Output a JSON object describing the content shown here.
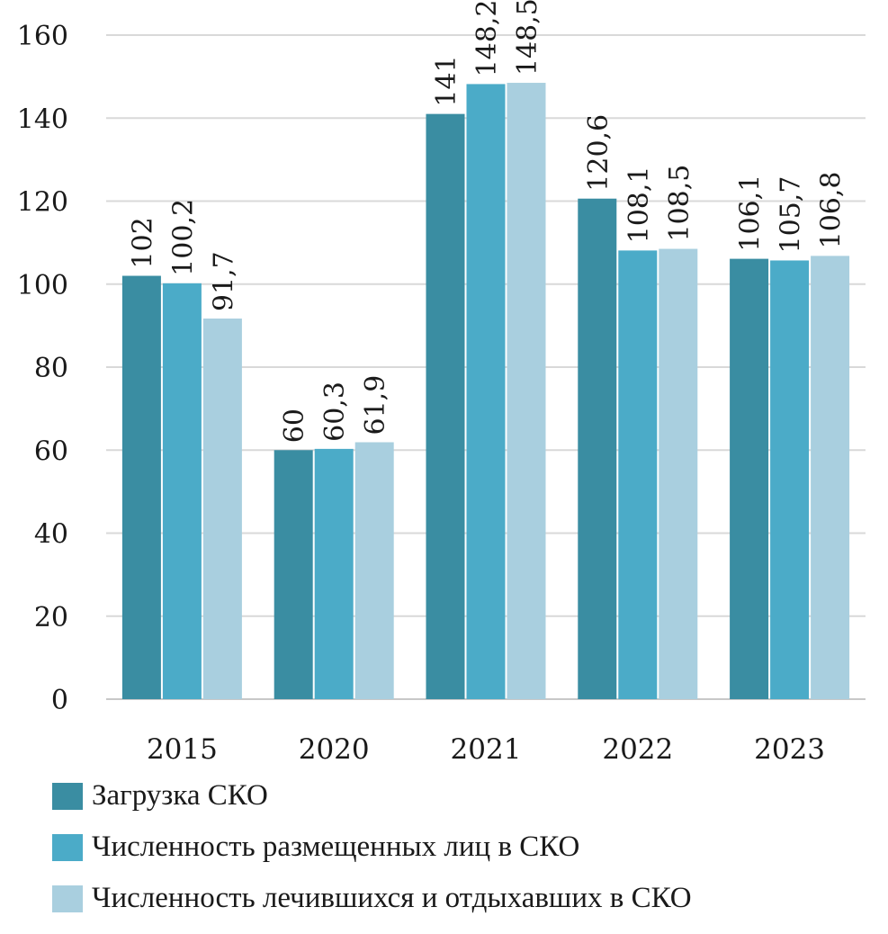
{
  "chart_data": {
    "type": "bar",
    "title": "",
    "xlabel": "",
    "ylabel": "",
    "categories": [
      "2015",
      "2020",
      "2021",
      "2022",
      "2023"
    ],
    "ylim": [
      0,
      160
    ],
    "yticks": [
      "0",
      "20",
      "40",
      "60",
      "80",
      "100",
      "120",
      "140",
      "160"
    ],
    "grid": true,
    "legend_position": "bottom",
    "series": [
      {
        "name": "Загрузка СКО",
        "color": "#3a8da2",
        "values": [
          102,
          60,
          141,
          120.6,
          106.1
        ],
        "labels": [
          "102",
          "60",
          "141",
          "120,6",
          "106,1"
        ]
      },
      {
        "name": "Численность размещенных лиц в СКО",
        "color": "#4babc8",
        "values": [
          100.2,
          60.3,
          148.2,
          108.1,
          105.7
        ],
        "labels": [
          "100,2",
          "60,3",
          "148,2",
          "108,1",
          "105,7"
        ]
      },
      {
        "name": "Численность лечившихся и отдыхавших в СКО",
        "color": "#a9cfdf",
        "values": [
          91.7,
          61.9,
          148.5,
          108.5,
          106.8
        ],
        "labels": [
          "91,7",
          "61,9",
          "148,5",
          "108,5",
          "106,8"
        ]
      }
    ]
  }
}
